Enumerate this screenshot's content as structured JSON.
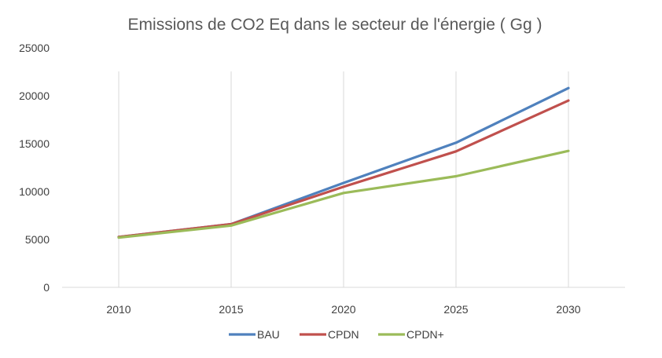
{
  "chart_data": {
    "type": "line",
    "title": "Emissions de CO2 Eq dans le secteur de l'énergie ( Gg )",
    "xlabel": "",
    "ylabel": "",
    "categories": [
      "2010",
      "2015",
      "2020",
      "2025",
      "2030"
    ],
    "ylim": [
      0,
      25000
    ],
    "yticks": [
      "0",
      "5000",
      "10000",
      "15000",
      "20000",
      "25000"
    ],
    "grid": "vertical",
    "legend_position": "bottom",
    "series": [
      {
        "name": "BAU",
        "color": "#4F81BD",
        "values": [
          5250,
          6600,
          10900,
          15100,
          20800
        ]
      },
      {
        "name": "CPDN",
        "color": "#C0504D",
        "values": [
          5250,
          6600,
          10500,
          14200,
          19500
        ]
      },
      {
        "name": "CPDN+",
        "color": "#9BBB59",
        "values": [
          5200,
          6450,
          9850,
          11600,
          14250
        ]
      }
    ]
  }
}
